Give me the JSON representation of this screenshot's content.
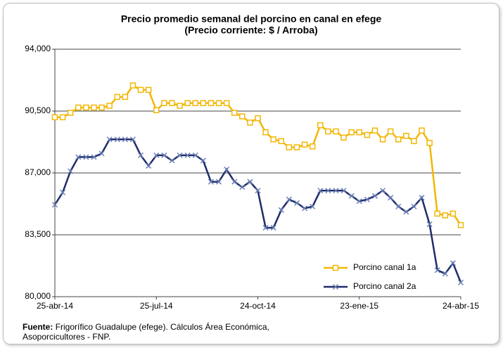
{
  "chart_data": {
    "type": "line",
    "title": "Precio promedio semanal del porcino  en canal en efege",
    "subtitle": "(Precio corriente: $ / Arroba)",
    "categories": [
      "25-abr-14",
      null,
      null,
      null,
      null,
      null,
      null,
      null,
      null,
      null,
      null,
      null,
      null,
      "25-jul-14",
      null,
      null,
      null,
      null,
      null,
      null,
      null,
      null,
      null,
      null,
      null,
      null,
      "24-oct-14",
      null,
      null,
      null,
      null,
      null,
      null,
      null,
      null,
      null,
      null,
      null,
      null,
      "23-ene-15",
      null,
      null,
      null,
      null,
      null,
      null,
      null,
      null,
      null,
      null,
      null,
      null,
      "24-abr-15"
    ],
    "series": [
      {
        "name": "Porcino canal 1a",
        "color": "#f2b705",
        "marker": "square",
        "values": [
          90150,
          90150,
          90400,
          90700,
          90700,
          90700,
          90700,
          90800,
          91300,
          91300,
          91950,
          91700,
          91700,
          90550,
          90950,
          90950,
          90800,
          90950,
          90950,
          90950,
          90950,
          90950,
          90950,
          90400,
          90200,
          89850,
          90100,
          89300,
          88900,
          88800,
          88450,
          88450,
          88600,
          88500,
          89700,
          89350,
          89350,
          89000,
          89300,
          89300,
          89150,
          89400,
          88900,
          89350,
          88900,
          89100,
          88800,
          89400,
          88700,
          84700,
          84600,
          84700,
          84050
        ]
      },
      {
        "name": "Porcino canal 2a",
        "color": "#1f2d6b",
        "marker": "x",
        "values": [
          85200,
          85900,
          87100,
          87900,
          87900,
          87900,
          88100,
          88900,
          88900,
          88900,
          88900,
          88000,
          87400,
          88000,
          88000,
          87700,
          88000,
          88000,
          88000,
          87700,
          86500,
          86500,
          87200,
          86500,
          86200,
          86500,
          86000,
          83900,
          83900,
          84900,
          85500,
          85300,
          85000,
          85100,
          86000,
          86000,
          86000,
          86000,
          85700,
          85400,
          85500,
          85700,
          86000,
          85600,
          85100,
          84800,
          85100,
          85600,
          84100,
          81500,
          81300,
          81900,
          80800
        ]
      }
    ],
    "ylim": [
      80000,
      94000
    ],
    "yticks": [
      {
        "value": 80000,
        "label": "80,000"
      },
      {
        "value": 83500,
        "label": "83,500"
      },
      {
        "value": 87000,
        "label": "87,000"
      },
      {
        "value": 90500,
        "label": "90,500"
      },
      {
        "value": 94000,
        "label": "94,000"
      }
    ],
    "grid": true,
    "legend": "lower right",
    "source_label": "Fuente:",
    "source_text": "Frigorífico Guadalupe (efege). Cálculos Área Económica,",
    "source_text2": "Asoporcicultores  - FNP."
  }
}
